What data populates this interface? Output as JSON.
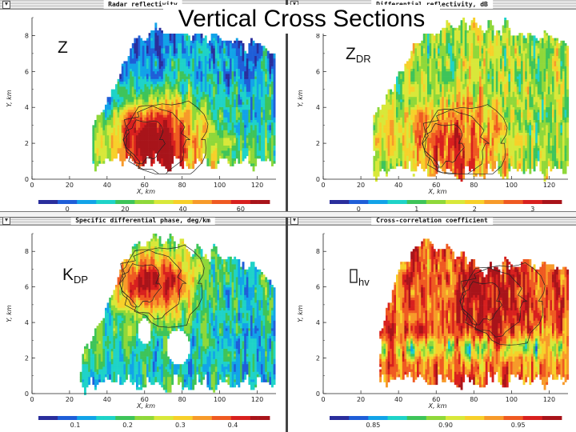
{
  "page_title": "Vertical Cross Sections",
  "colors": {
    "page_bg": "#ffffff",
    "nodata": "#ffffff",
    "contour": "#222222"
  },
  "colormap": [
    "#2a2e9c",
    "#1f5ed8",
    "#12a3e8",
    "#1fd3c8",
    "#3ec45a",
    "#8fd83a",
    "#d8e83a",
    "#f7d02a",
    "#f79a2a",
    "#ef5a22",
    "#d8201f",
    "#a8141a"
  ],
  "chart_data": [
    {
      "type": "heatmap",
      "label": "Z",
      "title": "Radar reflectivity",
      "xlabel": "X, km",
      "ylabel": "Y, km",
      "xlim": [
        0,
        130
      ],
      "ylim": [
        0,
        9
      ],
      "xticks": [
        "0",
        "20",
        "40",
        "60",
        "80",
        "100",
        "120"
      ],
      "yticks": [
        "0",
        "2",
        "4",
        "6",
        "8"
      ],
      "colorbar_ticks": [
        "0",
        "20",
        "40",
        "60"
      ],
      "colorbar_values": [
        0,
        20,
        40,
        60
      ],
      "colorbar_range": [
        -10,
        70
      ],
      "extent": {
        "x_start": 32,
        "x_end": 130,
        "y_min": 0.8,
        "peak_x": 66,
        "peak_y": 2.2,
        "top_heights": [
          3.0,
          5.2,
          7.5,
          8.3,
          8.6,
          8.4,
          8.2,
          7.8,
          7.4,
          7.0
        ]
      }
    },
    {
      "type": "heatmap",
      "label": "Z",
      "label_sub": "DR",
      "title": "Differential reflectivity, dB",
      "xlabel": "X, km",
      "ylabel": "Y, km",
      "xlim": [
        0,
        130
      ],
      "ylim": [
        0,
        9
      ],
      "xticks": [
        "0",
        "20",
        "40",
        "60",
        "80",
        "100",
        "120"
      ],
      "yticks": [
        "0",
        "2",
        "4",
        "6",
        "8"
      ],
      "colorbar_ticks": [
        "0",
        "1",
        "2",
        "3"
      ],
      "colorbar_values": [
        0,
        1,
        2,
        3
      ],
      "colorbar_range": [
        -0.5,
        3.5
      ],
      "extent": {
        "x_start": 26,
        "x_end": 130,
        "y_min": 0.3,
        "peak_x": 70,
        "peak_y": 2.0,
        "top_heights": [
          3.2,
          5.6,
          7.6,
          8.4,
          8.7,
          8.8,
          8.6,
          8.2,
          7.8,
          7.6
        ]
      }
    },
    {
      "type": "heatmap",
      "label": "K",
      "label_sub": "DP",
      "title": "Specific differential phase, deg/km",
      "xlabel": "X, km",
      "ylabel": "Y, km",
      "xlim": [
        0,
        130
      ],
      "ylim": [
        0,
        9
      ],
      "xticks": [
        "0",
        "20",
        "40",
        "60",
        "80",
        "100",
        "120"
      ],
      "yticks": [
        "0",
        "2",
        "4",
        "6",
        "8"
      ],
      "colorbar_ticks": [
        "0.1",
        "0.2",
        "0.3",
        "0.4"
      ],
      "colorbar_values": [
        0.1,
        0.2,
        0.3,
        0.4
      ],
      "colorbar_range": [
        0.03,
        0.47
      ],
      "extent": {
        "x_start": 26,
        "x_end": 130,
        "y_min": 0.4,
        "peak_x": 64,
        "peak_y": 6.2,
        "top_heights": [
          2.0,
          4.5,
          7.6,
          8.7,
          8.8,
          8.4,
          8.0,
          7.8,
          7.0,
          6.0
        ]
      }
    },
    {
      "type": "heatmap",
      "label": "",
      "label_sub": "hv",
      "title": "Cross-correlation coefficient",
      "xlabel": "X, km",
      "ylabel": "Y, km",
      "xlim": [
        0,
        130
      ],
      "ylim": [
        0,
        9
      ],
      "xticks": [
        "0",
        "20",
        "40",
        "60",
        "80",
        "100",
        "120"
      ],
      "yticks": [
        "0",
        "2",
        "4",
        "6",
        "8"
      ],
      "colorbar_ticks": [
        "0.85",
        "0.90",
        "0.95"
      ],
      "colorbar_values": [
        0.85,
        0.9,
        0.95
      ],
      "colorbar_range": [
        0.82,
        0.98
      ],
      "extent": {
        "x_start": 30,
        "x_end": 130,
        "y_min": 0.6,
        "peak_x": 90,
        "peak_y": 5.2,
        "top_heights": [
          3.5,
          7.5,
          8.6,
          8.2,
          7.8,
          7.2,
          7.4,
          7.6,
          7.0,
          7.2
        ]
      }
    }
  ]
}
